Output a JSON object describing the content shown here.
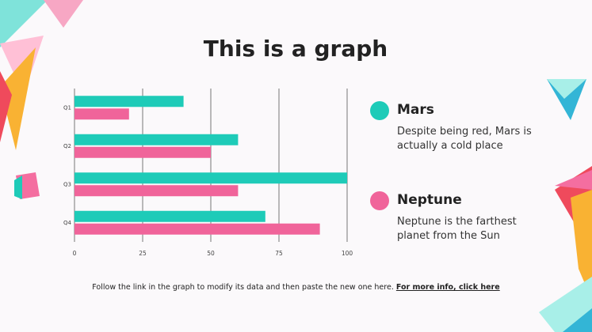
{
  "chart_data": {
    "type": "hbar",
    "title": "This is a graph",
    "categories": [
      "Q1",
      "Q2",
      "Q3",
      "Q4"
    ],
    "series": [
      {
        "name": "Mars",
        "color": "#1ecbb8",
        "description": "Despite being red, Mars is actually a cold place",
        "values": [
          40,
          60,
          100,
          70
        ]
      },
      {
        "name": "Neptune",
        "color": "#f0649a",
        "description": "Neptune is the farthest planet from the Sun",
        "values": [
          20,
          50,
          60,
          90
        ]
      }
    ],
    "xlim": [
      0,
      100
    ],
    "xticks": [
      0,
      25,
      50,
      75,
      100
    ],
    "grid": true
  },
  "footer": {
    "text": "Follow the link in the graph to modify its data and then paste the new one here.",
    "link": "For more info, click here"
  }
}
